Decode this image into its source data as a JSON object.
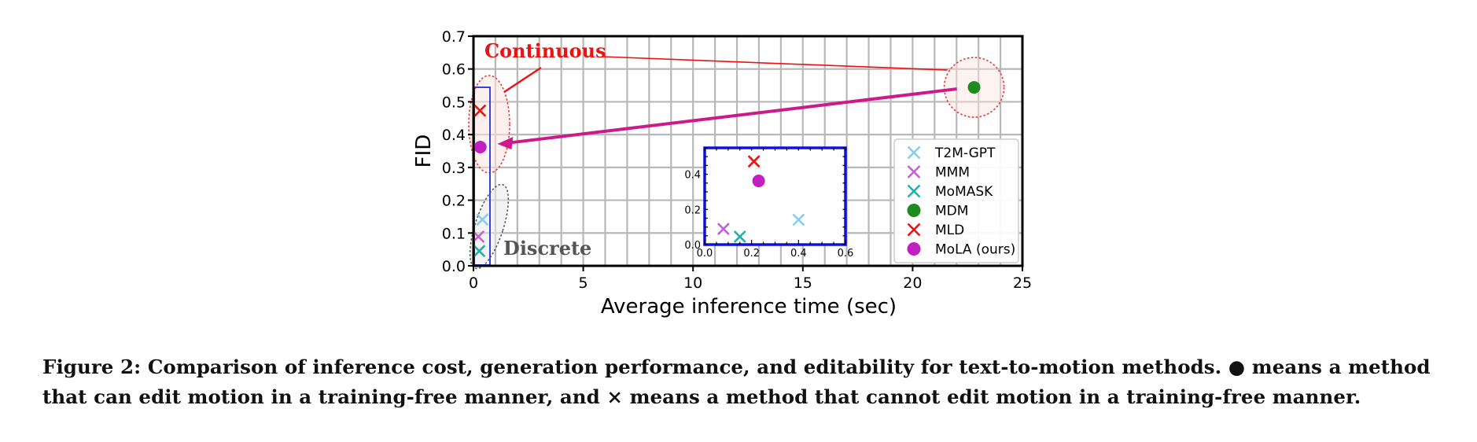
{
  "chart_data": {
    "type": "scatter",
    "xlabel": "Average inference time (sec)",
    "ylabel": "FID",
    "xlim": [
      0,
      25
    ],
    "ylim": [
      0,
      0.7
    ],
    "xticks": [
      "0",
      "5",
      "10",
      "15",
      "20",
      "25"
    ],
    "yticks": [
      "0.0",
      "0.1",
      "0.2",
      "0.3",
      "0.4",
      "0.5",
      "0.6",
      "0.7"
    ],
    "grid": true,
    "legend_position": "lower-right",
    "series": [
      {
        "name": "T2M-GPT",
        "marker": "x",
        "color": "#87ceeb",
        "x": 0.4,
        "y": 0.141
      },
      {
        "name": "MMM",
        "marker": "x",
        "color": "#c55fd6",
        "x": 0.08,
        "y": 0.089
      },
      {
        "name": "MoMASK",
        "marker": "x",
        "color": "#20b2aa",
        "x": 0.15,
        "y": 0.045
      },
      {
        "name": "MDM",
        "marker": "o",
        "color": "#1e8b1e",
        "x": 22.8,
        "y": 0.544
      },
      {
        "name": "MLD",
        "marker": "x",
        "color": "#ee1111",
        "x": 0.21,
        "y": 0.473
      },
      {
        "name": "MoLA (ours)",
        "marker": "o",
        "color": "#c21fc2",
        "x": 0.23,
        "y": 0.362
      }
    ],
    "annotations": {
      "continuous": "Continuous",
      "discrete": "Discrete"
    },
    "inset": {
      "xlim": [
        0,
        0.6
      ],
      "ylim": [
        0,
        0.55
      ],
      "xticks": [
        "0.0",
        "0.2",
        "0.4",
        "0.6"
      ],
      "yticks": [
        "0.0",
        "0.2",
        "0.4"
      ]
    }
  },
  "caption": {
    "label": "Figure 2:",
    "text": "Comparison of inference cost, generation performance, and editability for text-to-motion methods. ● means a method that can edit motion in a training-free manner, and × means a method that cannot edit motion in a training-free manner."
  }
}
